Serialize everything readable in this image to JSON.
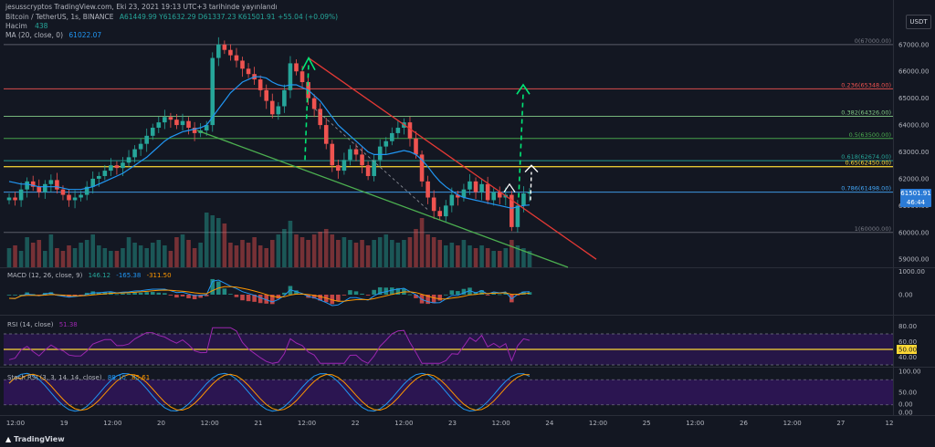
{
  "header": {
    "publisher": "jesusscryptos TradingView.com, Eki 23, 2021 19:13 UTC+3 tarihinde yayınlandı",
    "symbol": "Bitcoin / TetherUS, 1s, BINANCE",
    "ohlc": "A61449.99 Y61632.29 D61337.23 K61501.91 +55.04 (+0.09%)",
    "volume_label": "Hacim",
    "volume_value": "438",
    "ma_label": "MA (20, close, 0)",
    "ma_value": "61022.07"
  },
  "currency_button": "USDT",
  "last_price": {
    "price": "61501.91",
    "countdown": "46:44"
  },
  "indicators": {
    "macd": {
      "label": "MACD (12, 26, close, 9)",
      "v1": "146.12",
      "v2": "-165.38",
      "v3": "-311.50"
    },
    "rsi": {
      "label": "RSI (14, close)",
      "v1": "51.38"
    },
    "stoch": {
      "label": "Stoch RSI (3, 3, 14, 14, close)",
      "v1": "88.10",
      "v2": "85.61"
    }
  },
  "footer": {
    "brand": "TradingView"
  },
  "colors": {
    "background": "#131722",
    "up": "#26a69a",
    "down": "#ef5350",
    "ma": "#2196f3",
    "trend_upper": "#e53935",
    "trend_lower": "#4caf50",
    "projection": "#00e676",
    "rsi_band": "#4a148c",
    "highlight_level": "#fdd835"
  },
  "chart_data": {
    "type": "candlestick",
    "price_axis": {
      "range": [
        58700,
        67300
      ],
      "ticks": [
        "67000.00",
        "66000.00",
        "65000.00",
        "64000.00",
        "63000.00",
        "62000.00",
        "61000.00",
        "60000.00",
        "59000.00"
      ]
    },
    "time_axis": {
      "ticks": [
        "12:00",
        "19",
        "12:00",
        "20",
        "12:00",
        "21",
        "12:00",
        "22",
        "12:00",
        "23",
        "12:00",
        "24",
        "12:00",
        "25",
        "12:00",
        "26",
        "12:00",
        "27",
        "12"
      ]
    },
    "fibonacci": [
      {
        "label": "0(67000.00)",
        "price": 67000
      },
      {
        "label": "0.236(65348.00)",
        "price": 65348
      },
      {
        "label": "0.382(64326.00)",
        "price": 64326
      },
      {
        "label": "0.5(63500.00)",
        "price": 63500
      },
      {
        "label": "0.618(62674.00)",
        "price": 62674
      },
      {
        "label": "0.65(62450.00)",
        "price": 62450
      },
      {
        "label": "0.786(61498.00)",
        "price": 61498
      },
      {
        "label": "1(60000.00)",
        "price": 60000
      }
    ],
    "candles_close": [
      61300,
      61200,
      61600,
      61900,
      61700,
      61500,
      61800,
      61950,
      61600,
      61400,
      61200,
      61300,
      61400,
      61700,
      62000,
      62100,
      62300,
      62500,
      62400,
      62600,
      62800,
      63100,
      63300,
      63600,
      63900,
      64100,
      64300,
      64200,
      64000,
      64150,
      63900,
      63700,
      63800,
      64000,
      66500,
      67000,
      66800,
      66600,
      66400,
      66100,
      65900,
      65700,
      65300,
      64900,
      64400,
      64700,
      65300,
      66300,
      66000,
      65600,
      65000,
      64600,
      64000,
      63300,
      62500,
      62300,
      62700,
      63100,
      62900,
      62500,
      62100,
      62700,
      63200,
      63400,
      63700,
      63900,
      64100,
      63500,
      62900,
      61900,
      61300,
      60800,
      60600,
      61000,
      61400,
      61300,
      61600,
      61900,
      61500,
      61800,
      61200,
      61500,
      61300,
      61400,
      60200,
      61000,
      61450,
      61502
    ],
    "ma": [
      61900,
      61850,
      61800,
      61800,
      61750,
      61700,
      61700,
      61700,
      61700,
      61650,
      61600,
      61600,
      61600,
      61650,
      61700,
      61800,
      61900,
      62000,
      62100,
      62200,
      62350,
      62500,
      62650,
      62800,
      63000,
      63200,
      63400,
      63550,
      63650,
      63750,
      63800,
      63850,
      63900,
      64000,
      64300,
      64600,
      64900,
      65200,
      65400,
      65600,
      65700,
      65800,
      65800,
      65750,
      65600,
      65500,
      65450,
      65500,
      65500,
      65400,
      65300,
      65100,
      64900,
      64600,
      64300,
      64000,
      63800,
      63600,
      63400,
      63200,
      63000,
      62900,
      62900,
      62900,
      62950,
      63000,
      63050,
      63000,
      62900,
      62700,
      62450,
      62150,
      61900,
      61700,
      61550,
      61400,
      61300,
      61250,
      61200,
      61150,
      61100,
      61050,
      61000,
      60950,
      60900,
      60950,
      61000,
      61022
    ],
    "volume": [
      0.35,
      0.4,
      0.3,
      0.55,
      0.45,
      0.5,
      0.3,
      0.6,
      0.35,
      0.3,
      0.4,
      0.35,
      0.45,
      0.5,
      0.6,
      0.4,
      0.35,
      0.3,
      0.3,
      0.35,
      0.55,
      0.45,
      0.4,
      0.35,
      0.45,
      0.5,
      0.4,
      0.3,
      0.55,
      0.6,
      0.5,
      0.35,
      0.45,
      1.0,
      0.95,
      0.9,
      0.8,
      0.45,
      0.4,
      0.5,
      0.45,
      0.55,
      0.4,
      0.35,
      0.5,
      0.6,
      0.7,
      0.85,
      0.6,
      0.55,
      0.5,
      0.6,
      0.65,
      0.7,
      0.6,
      0.5,
      0.55,
      0.5,
      0.45,
      0.5,
      0.4,
      0.5,
      0.55,
      0.6,
      0.5,
      0.45,
      0.5,
      0.55,
      0.7,
      0.9,
      0.6,
      0.55,
      0.5,
      0.4,
      0.45,
      0.4,
      0.5,
      0.4,
      0.35,
      0.4,
      0.35,
      0.3,
      0.3,
      0.35,
      0.5,
      0.4,
      0.35,
      0.3
    ],
    "macd_axis_ticks": [
      "1000.00",
      "0.00"
    ],
    "rsi_axis_ticks": [
      "80.00",
      "60.00",
      "50.00",
      "40.00"
    ],
    "stoch_axis_ticks": [
      "100.00",
      "50.00",
      "0.00",
      "0.00"
    ]
  }
}
